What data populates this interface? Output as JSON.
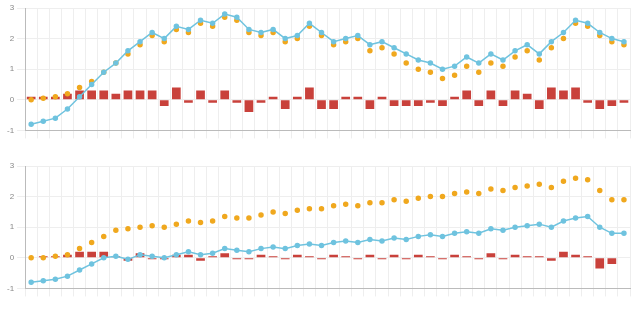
{
  "chart_data": [
    {
      "type": "bar",
      "categories": [
        null,
        null,
        null,
        null,
        null,
        null,
        null,
        null,
        null,
        null,
        null,
        null,
        null,
        null,
        null,
        null,
        null,
        null,
        null,
        null,
        null,
        null,
        null,
        null,
        null,
        null,
        null,
        null,
        null,
        null,
        null,
        null,
        null,
        null,
        null,
        null,
        null,
        null,
        null,
        null,
        null,
        null,
        null,
        null,
        null,
        null,
        null,
        null,
        null,
        null
      ],
      "ylim": [
        -1,
        3
      ],
      "yticks": [
        -1,
        0,
        1,
        2,
        3
      ],
      "grid": true,
      "series": [
        {
          "type": "bar",
          "color": "#c9413b",
          "values": [
            0.1,
            0.1,
            0.1,
            0.2,
            0.3,
            0.3,
            0.3,
            0.2,
            0.3,
            0.3,
            0.3,
            -0.2,
            0.4,
            -0.1,
            0.3,
            -0.1,
            0.3,
            -0.1,
            -0.4,
            -0.1,
            0.1,
            -0.3,
            0.1,
            0.4,
            -0.3,
            -0.3,
            0.1,
            0.1,
            -0.3,
            0.1,
            -0.2,
            -0.2,
            -0.2,
            -0.1,
            -0.2,
            0.1,
            0.3,
            -0.2,
            0.3,
            -0.2,
            0.3,
            0.2,
            -0.3,
            0.4,
            0.3,
            0.4,
            -0.1,
            -0.3,
            -0.2,
            -0.1
          ]
        },
        {
          "type": "line",
          "color": "#6fc3df",
          "marker": "circle",
          "line_style": "solid",
          "values": [
            -0.8,
            -0.7,
            -0.6,
            -0.3,
            0.1,
            0.5,
            0.9,
            1.2,
            1.6,
            1.9,
            2.2,
            2.0,
            2.4,
            2.3,
            2.6,
            2.5,
            2.8,
            2.7,
            2.3,
            2.2,
            2.3,
            2.0,
            2.1,
            2.5,
            2.2,
            1.9,
            2.0,
            2.1,
            1.8,
            1.9,
            1.7,
            1.5,
            1.3,
            1.2,
            1.0,
            1.1,
            1.4,
            1.2,
            1.5,
            1.3,
            1.6,
            1.8,
            1.5,
            1.9,
            2.2,
            2.6,
            2.5,
            2.2,
            2.0,
            1.9
          ]
        },
        {
          "type": "line",
          "color": "#f0a81e",
          "marker": "circle",
          "line_style": "none",
          "values": [
            0,
            0.05,
            0.1,
            0.2,
            0.4,
            0.6,
            0.9,
            1.2,
            1.5,
            1.8,
            2.1,
            1.9,
            2.3,
            2.2,
            2.5,
            2.4,
            2.7,
            2.6,
            2.2,
            2.1,
            2.2,
            1.9,
            2.0,
            2.4,
            2.1,
            1.8,
            1.9,
            2.0,
            1.6,
            1.7,
            1.5,
            1.2,
            1.0,
            0.9,
            0.7,
            0.8,
            1.1,
            0.9,
            1.2,
            1.1,
            1.4,
            1.6,
            1.3,
            1.7,
            2.0,
            2.5,
            2.4,
            2.1,
            1.9,
            1.8
          ]
        }
      ]
    },
    {
      "type": "bar",
      "categories": [
        null,
        null,
        null,
        null,
        null,
        null,
        null,
        null,
        null,
        null,
        null,
        null,
        null,
        null,
        null,
        null,
        null,
        null,
        null,
        null,
        null,
        null,
        null,
        null,
        null,
        null,
        null,
        null,
        null,
        null,
        null,
        null,
        null,
        null,
        null,
        null,
        null,
        null,
        null,
        null,
        null,
        null,
        null,
        null,
        null,
        null,
        null,
        null,
        null,
        null
      ],
      "ylim": [
        -1,
        3
      ],
      "yticks": [
        -1,
        0,
        1,
        2,
        3
      ],
      "grid": true,
      "series": [
        {
          "type": "bar",
          "color": "#c9413b",
          "values": [
            0,
            0.05,
            0.05,
            0.1,
            0.2,
            0.2,
            0.2,
            0.05,
            -0.1,
            0.15,
            -0.05,
            -0.05,
            0.1,
            0.1,
            -0.1,
            0.05,
            0.15,
            -0.05,
            -0.05,
            0.1,
            0.05,
            -0.05,
            0.1,
            0.05,
            -0.05,
            0.1,
            0.05,
            -0.05,
            0.1,
            -0.05,
            0.1,
            -0.05,
            0.1,
            0.05,
            -0.05,
            0.1,
            0.05,
            -0.05,
            0.15,
            -0.05,
            0.1,
            0.05,
            0.05,
            -0.1,
            0.2,
            0.1,
            0.05,
            -0.35,
            -0.2,
            0
          ]
        },
        {
          "type": "line",
          "color": "#6fc3df",
          "marker": "circle",
          "line_style": "solid",
          "values": [
            -0.8,
            -0.75,
            -0.7,
            -0.6,
            -0.4,
            -0.2,
            0,
            0.05,
            -0.05,
            0.1,
            0.05,
            0,
            0.1,
            0.2,
            0.1,
            0.15,
            0.3,
            0.25,
            0.2,
            0.3,
            0.35,
            0.3,
            0.4,
            0.45,
            0.4,
            0.5,
            0.55,
            0.5,
            0.6,
            0.55,
            0.65,
            0.6,
            0.7,
            0.75,
            0.7,
            0.8,
            0.85,
            0.8,
            0.95,
            0.9,
            1.0,
            1.05,
            1.1,
            1.0,
            1.2,
            1.3,
            1.35,
            1.0,
            0.8,
            0.8
          ]
        },
        {
          "type": "line",
          "color": "#f0a81e",
          "marker": "circle",
          "line_style": "none",
          "values": [
            0,
            0,
            0.05,
            0.1,
            0.3,
            0.5,
            0.7,
            0.9,
            0.95,
            1.0,
            1.05,
            1.0,
            1.1,
            1.2,
            1.15,
            1.2,
            1.35,
            1.3,
            1.3,
            1.4,
            1.5,
            1.45,
            1.55,
            1.6,
            1.6,
            1.7,
            1.75,
            1.7,
            1.8,
            1.8,
            1.9,
            1.85,
            1.95,
            2.0,
            2.0,
            2.1,
            2.15,
            2.1,
            2.25,
            2.2,
            2.3,
            2.35,
            2.4,
            2.3,
            2.5,
            2.6,
            2.55,
            2.2,
            1.9,
            1.9
          ]
        }
      ]
    }
  ]
}
